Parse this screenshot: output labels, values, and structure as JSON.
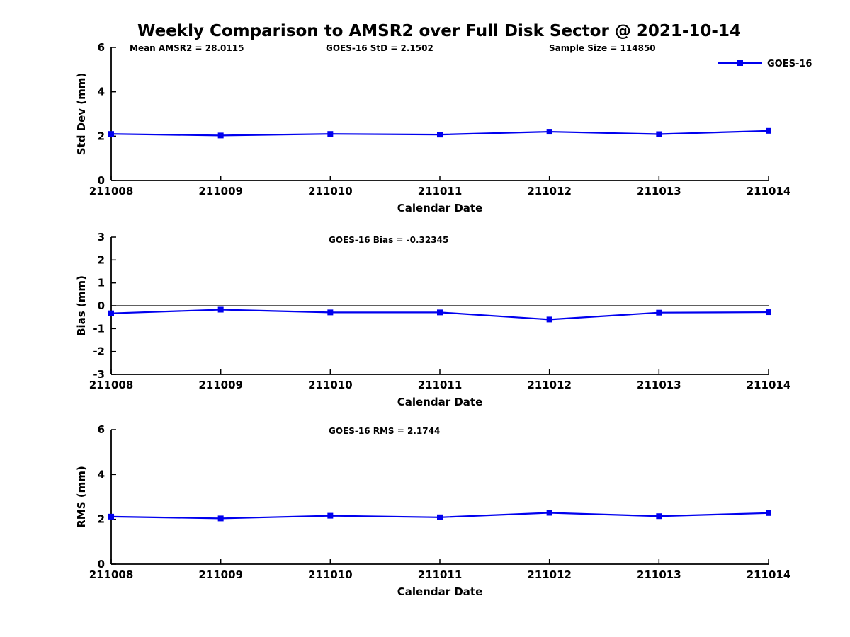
{
  "title": "Weekly Comparison to AMSR2 over Full Disk Sector @ 2021-10-14",
  "xlabel": "Calendar Date",
  "categories": [
    "211008",
    "211009",
    "211010",
    "211011",
    "211012",
    "211013",
    "211014"
  ],
  "legend": {
    "label": "GOES-16"
  },
  "colors": {
    "line": "#0000EE",
    "axis": "#000000",
    "text": "#000000"
  },
  "chart_data": [
    {
      "type": "line",
      "panel": "std-dev",
      "ylabel": "Std Dev (mm)",
      "xlabel": "Calendar Date",
      "ylim": [
        0,
        6
      ],
      "yticks": [
        0,
        2,
        4,
        6
      ],
      "x": [
        "211008",
        "211009",
        "211010",
        "211011",
        "211012",
        "211013",
        "211014"
      ],
      "series": [
        {
          "name": "GOES-16",
          "values": [
            2.1,
            2.03,
            2.1,
            2.07,
            2.2,
            2.09,
            2.24
          ]
        }
      ],
      "annotations": [
        "Mean AMSR2 = 28.0115",
        "GOES-16 StD = 2.1502",
        "Sample Size = 114850"
      ],
      "legend_position": "top-right",
      "grid": false
    },
    {
      "type": "line",
      "panel": "bias",
      "ylabel": "Bias (mm)",
      "xlabel": "Calendar Date",
      "ylim": [
        -3,
        3
      ],
      "yticks": [
        -3,
        -2,
        -1,
        0,
        1,
        2,
        3
      ],
      "zero_line": true,
      "x": [
        "211008",
        "211009",
        "211010",
        "211011",
        "211012",
        "211013",
        "211014"
      ],
      "series": [
        {
          "name": "GOES-16",
          "values": [
            -0.33,
            -0.17,
            -0.29,
            -0.29,
            -0.6,
            -0.3,
            -0.28
          ]
        }
      ],
      "annotations": [
        "GOES-16 Bias  = -0.32345"
      ],
      "grid": false
    },
    {
      "type": "line",
      "panel": "rms",
      "ylabel": "RMS (mm)",
      "xlabel": "Calendar Date",
      "ylim": [
        0,
        6
      ],
      "yticks": [
        0,
        2,
        4,
        6
      ],
      "x": [
        "211008",
        "211009",
        "211010",
        "211011",
        "211012",
        "211013",
        "211014"
      ],
      "series": [
        {
          "name": "GOES-16",
          "values": [
            2.12,
            2.04,
            2.16,
            2.09,
            2.29,
            2.14,
            2.28
          ]
        }
      ],
      "annotations": [
        "GOES-16 RMS = 2.1744"
      ],
      "grid": false
    }
  ]
}
